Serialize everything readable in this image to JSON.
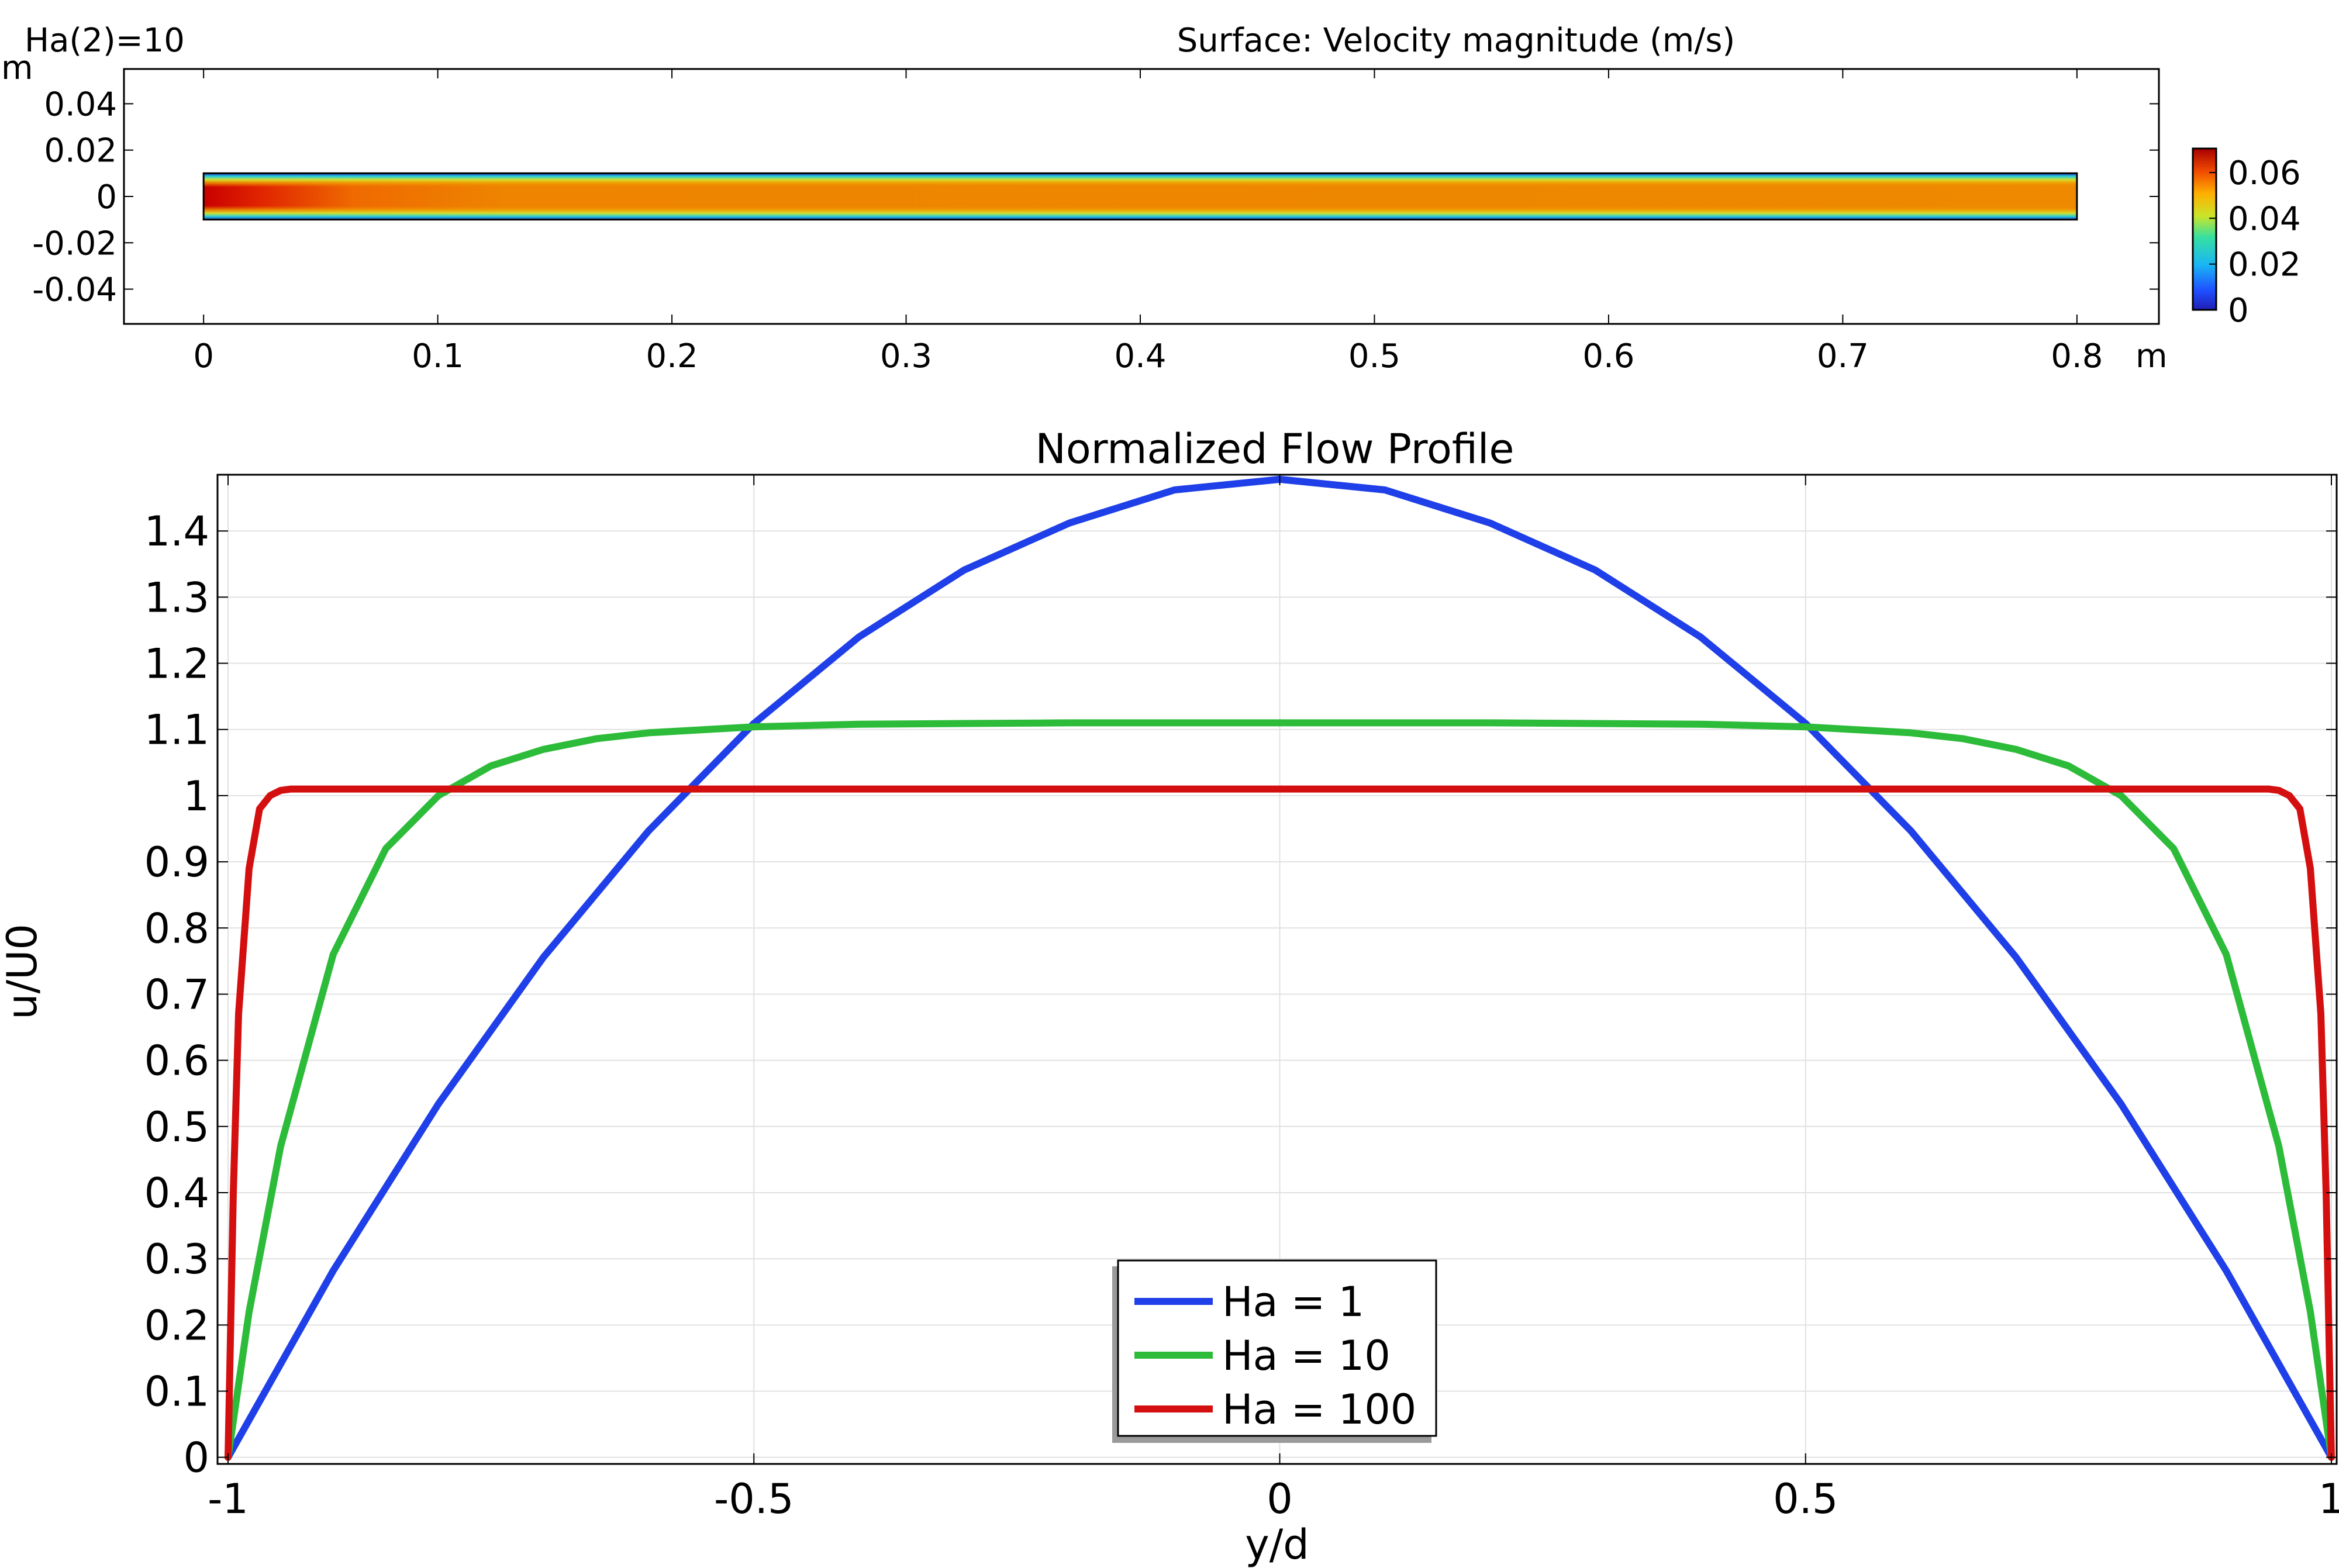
{
  "chart_data": [
    {
      "type": "heatmap",
      "title": "Surface: Velocity magnitude (m/s)",
      "parameter_label": "Ha(2)=10",
      "xlabel": "m",
      "ylabel": "m",
      "xlim": [
        -0.034,
        0.835
      ],
      "ylim": [
        -0.055,
        0.055
      ],
      "xticks": [
        "0",
        "0.1",
        "0.2",
        "0.3",
        "0.4",
        "0.5",
        "0.6",
        "0.7",
        "0.8"
      ],
      "yticks": [
        "0.04",
        "0.02",
        "0",
        "-0.02",
        "-0.04"
      ],
      "domain": {
        "x": [
          0,
          0.8
        ],
        "y": [
          -0.01,
          0.01
        ]
      },
      "colorbar": {
        "ticks": [
          "0.06",
          "0.04",
          "0.02",
          "0"
        ],
        "min": 0,
        "max": 0.0705,
        "colormap": "rainbow"
      }
    },
    {
      "type": "line",
      "title": "Normalized Flow Profile",
      "xlabel": "y/d",
      "ylabel": "u/U0",
      "xlim": [
        -1.01,
        1.005
      ],
      "ylim": [
        -0.01,
        1.485
      ],
      "xticks": [
        "-1",
        "-0.5",
        "0",
        "0.5",
        "1"
      ],
      "yticks": [
        "0",
        "0.1",
        "0.2",
        "0.3",
        "0.4",
        "0.5",
        "0.6",
        "0.7",
        "0.8",
        "0.9",
        "1",
        "1.1",
        "1.2",
        "1.3",
        "1.4"
      ],
      "grid": true,
      "legend_position": "bottom-center",
      "series": [
        {
          "name": "Ha = 1",
          "color": "#1f3fe8",
          "x": [
            -1,
            -0.9,
            -0.8,
            -0.7,
            -0.6,
            -0.5,
            -0.4,
            -0.3,
            -0.2,
            -0.1,
            0,
            0.1,
            0.2,
            0.3,
            0.4,
            0.5,
            0.6,
            0.7,
            0.8,
            0.9,
            1
          ],
          "y": [
            0,
            0.282,
            0.534,
            0.756,
            0.947,
            1.109,
            1.24,
            1.341,
            1.412,
            1.462,
            1.478,
            1.462,
            1.412,
            1.341,
            1.24,
            1.109,
            0.947,
            0.756,
            0.534,
            0.282,
            0
          ]
        },
        {
          "name": "Ha = 10",
          "color": "#2dbb3a",
          "x": [
            -1,
            -0.98,
            -0.95,
            -0.9,
            -0.85,
            -0.8,
            -0.75,
            -0.7,
            -0.65,
            -0.6,
            -0.5,
            -0.4,
            -0.2,
            0,
            0.2,
            0.4,
            0.5,
            0.6,
            0.65,
            0.7,
            0.75,
            0.8,
            0.85,
            0.9,
            0.95,
            0.98,
            1
          ],
          "y": [
            0,
            0.22,
            0.47,
            0.76,
            0.92,
            1.0,
            1.045,
            1.07,
            1.086,
            1.095,
            1.104,
            1.108,
            1.11,
            1.11,
            1.11,
            1.108,
            1.104,
            1.095,
            1.086,
            1.07,
            1.045,
            1.0,
            0.92,
            0.76,
            0.47,
            0.22,
            0
          ]
        },
        {
          "name": "Ha = 100",
          "color": "#d40f0f",
          "x": [
            -1,
            -0.995,
            -0.99,
            -0.98,
            -0.97,
            -0.96,
            -0.95,
            -0.94,
            -0.9,
            0,
            0.9,
            0.94,
            0.95,
            0.96,
            0.97,
            0.98,
            0.99,
            0.995,
            1
          ],
          "y": [
            0,
            0.4,
            0.67,
            0.89,
            0.98,
            1.0,
            1.008,
            1.01,
            1.01,
            1.01,
            1.01,
            1.01,
            1.008,
            1.0,
            0.98,
            0.89,
            0.67,
            0.4,
            0
          ]
        }
      ]
    }
  ]
}
